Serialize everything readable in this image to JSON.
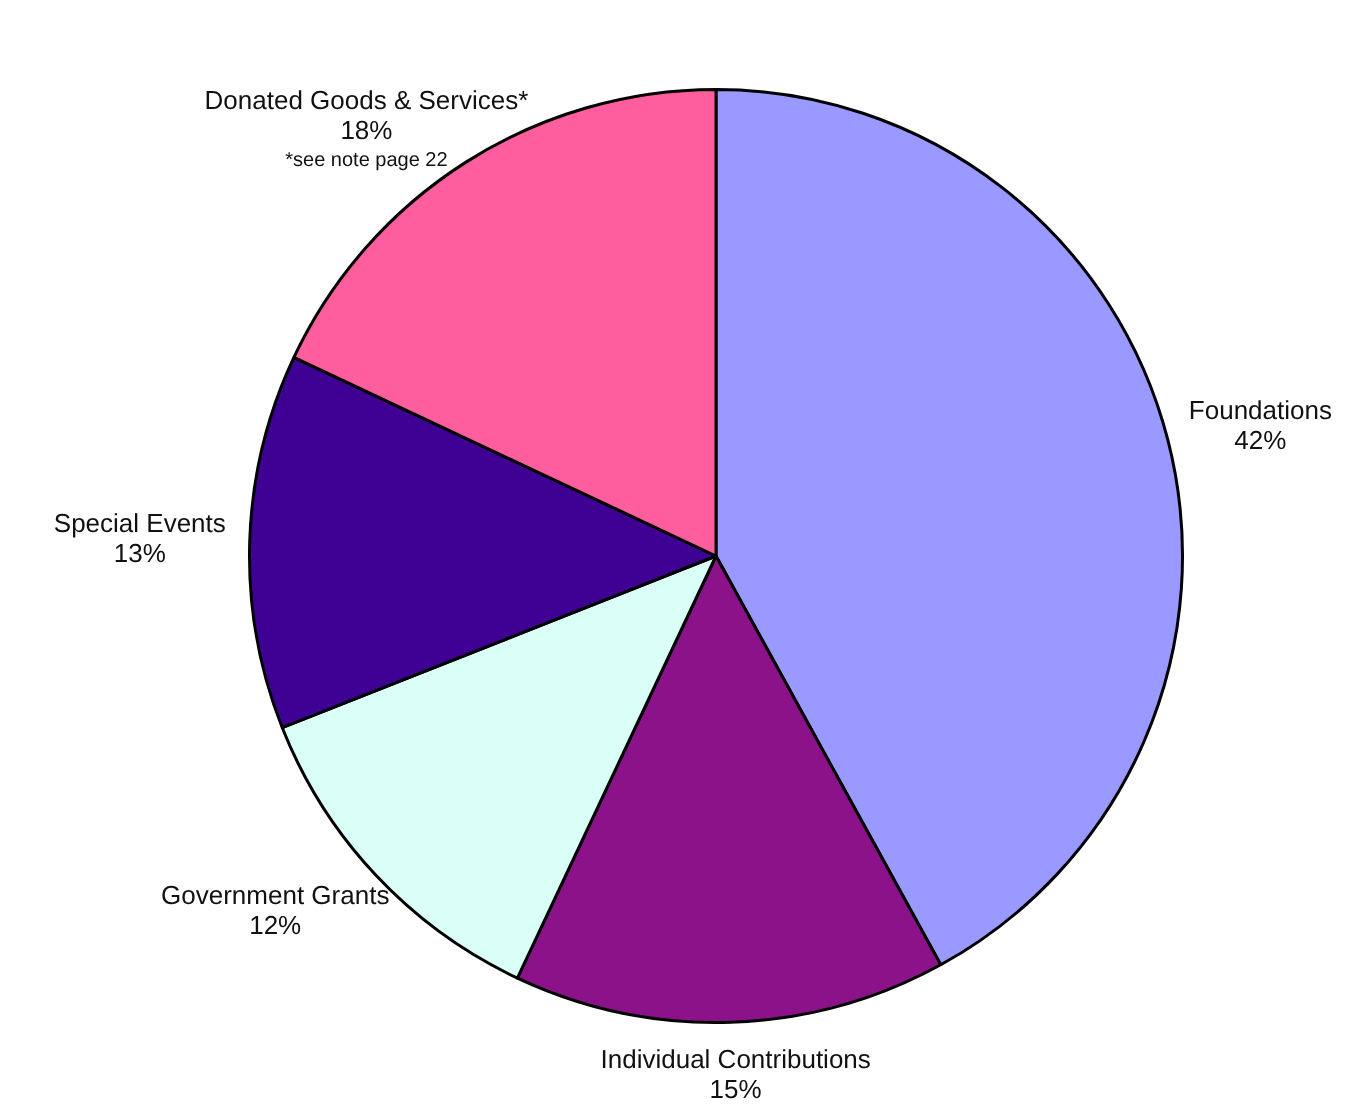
{
  "chart_data": {
    "type": "pie",
    "categories": [
      "Foundations",
      "Individual Contributions",
      "Government Grants",
      "Special Events",
      "Donated Goods & Services*"
    ],
    "values": [
      42,
      15,
      12,
      13,
      18
    ],
    "colors": [
      "#9999ff",
      "#8b1289",
      "#d9fff6",
      "#3f0094",
      "#ff5e9e"
    ],
    "value_labels": [
      "42%",
      "15%",
      "12%",
      "13%",
      "18%"
    ],
    "annotations": [
      "*see note page 22"
    ],
    "legend": false
  }
}
